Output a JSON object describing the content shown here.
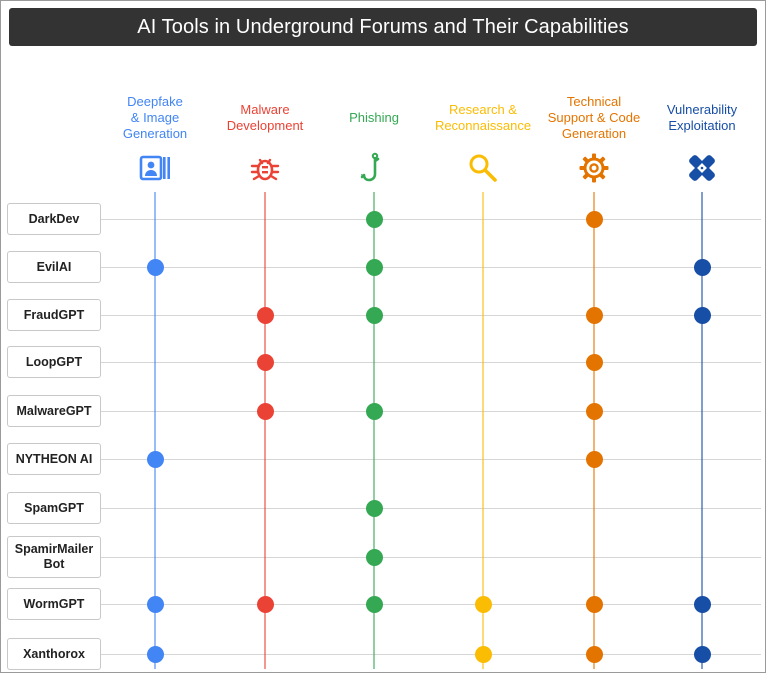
{
  "title": "AI Tools in Underground Forums and Their Capabilities",
  "columns": [
    {
      "label": "Deepfake & Image Generation",
      "lines": [
        "Deepfake",
        "& Image",
        "Generation"
      ],
      "color": "#4285F4",
      "icon": "portrait-image-icon"
    },
    {
      "label": "Malware Development",
      "lines": [
        "Malware",
        "Development"
      ],
      "color": "#EA4335",
      "icon": "bug-icon"
    },
    {
      "label": "Phishing",
      "lines": [
        "Phishing"
      ],
      "color": "#34A853",
      "icon": "fishhook-icon"
    },
    {
      "label": "Research & Reconnaissance",
      "lines": [
        "Research &",
        "Reconnaissance"
      ],
      "color": "#FBBC04",
      "icon": "magnifier-icon"
    },
    {
      "label": "Technical Support & Code Generation",
      "lines": [
        "Technical",
        "Support & Code",
        "Generation"
      ],
      "color": "#E37400",
      "icon": "gear-icon"
    },
    {
      "label": "Vulnerability Exploitation",
      "lines": [
        "Vulnerability",
        "Exploitation"
      ],
      "color": "#174EA6",
      "icon": "bandage-x-icon"
    }
  ],
  "rows": [
    {
      "name": "DarkDev",
      "lines": [
        "DarkDev"
      ],
      "capabilities": [
        false,
        false,
        true,
        false,
        true,
        false
      ]
    },
    {
      "name": "EvilAI",
      "lines": [
        "EvilAI"
      ],
      "capabilities": [
        true,
        false,
        true,
        false,
        false,
        true
      ]
    },
    {
      "name": "FraudGPT",
      "lines": [
        "FraudGPT"
      ],
      "capabilities": [
        false,
        true,
        true,
        false,
        true,
        true
      ]
    },
    {
      "name": "LoopGPT",
      "lines": [
        "LoopGPT"
      ],
      "capabilities": [
        false,
        true,
        false,
        false,
        true,
        false
      ]
    },
    {
      "name": "MalwareGPT",
      "lines": [
        "MalwareGPT"
      ],
      "capabilities": [
        false,
        true,
        true,
        false,
        true,
        false
      ]
    },
    {
      "name": "NYTHEON AI",
      "lines": [
        "NYTHEON AI"
      ],
      "capabilities": [
        true,
        false,
        false,
        false,
        true,
        false
      ]
    },
    {
      "name": "SpamGPT",
      "lines": [
        "SpamGPT"
      ],
      "capabilities": [
        false,
        false,
        true,
        false,
        false,
        false
      ]
    },
    {
      "name": "SpamirMailer Bot",
      "lines": [
        "SpamirMailer",
        "Bot"
      ],
      "capabilities": [
        false,
        false,
        true,
        false,
        false,
        false
      ]
    },
    {
      "name": "WormGPT",
      "lines": [
        "WormGPT"
      ],
      "capabilities": [
        true,
        true,
        true,
        true,
        true,
        true
      ]
    },
    {
      "name": "Xanthorox",
      "lines": [
        "Xanthorox"
      ],
      "capabilities": [
        true,
        false,
        false,
        true,
        true,
        true
      ]
    }
  ]
}
